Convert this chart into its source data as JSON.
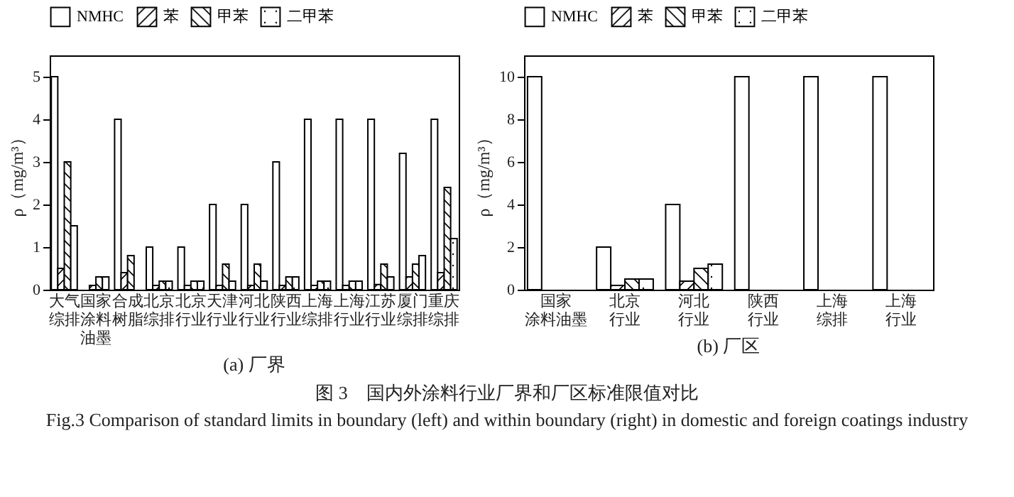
{
  "chart_data": [
    {
      "type": "bar",
      "title": "(a)  厂界",
      "ylabel": "ρ（mg/m³）",
      "categories": [
        "大气综排",
        "国家涂料油墨",
        "合成树脂",
        "北京综排",
        "北京行业",
        "天津行业",
        "河北行业",
        "陕西行业",
        "上海综排",
        "上海行业",
        "江苏行业",
        "厦门综排",
        "重庆综排"
      ],
      "series": [
        {
          "name": "NMHC",
          "color": "#000000",
          "values": [
            5,
            null,
            4,
            1,
            1,
            2,
            2,
            3,
            4,
            4,
            4,
            3.2,
            4
          ]
        },
        {
          "name": "苯",
          "color": "#000000",
          "values": [
            0.5,
            0.1,
            0.4,
            0.1,
            0.1,
            0.1,
            0.1,
            0.1,
            0.1,
            0.1,
            0.12,
            0.3,
            0.4
          ]
        },
        {
          "name": "甲苯",
          "color": "#000000",
          "values": [
            3,
            0.3,
            0.8,
            0.2,
            0.2,
            0.6,
            0.6,
            0.3,
            0.2,
            0.2,
            0.6,
            0.6,
            2.4
          ]
        },
        {
          "name": "二甲苯",
          "color": "#000000",
          "values": [
            1.5,
            0.3,
            null,
            0.2,
            0.2,
            0.2,
            0.2,
            0.3,
            0.2,
            0.2,
            0.3,
            0.8,
            1.2
          ]
        }
      ],
      "ylim": [
        0,
        5.5
      ],
      "yticks": [
        0,
        1,
        2,
        3,
        4,
        5
      ],
      "legend": "top",
      "annotations": [
        "图 3　国内外涂料行业厂界和厂区标准限值对比",
        "Fig.3 Comparison of standard limits in boundary (left) and within boundary (right) in domestic and foreign coatings industry"
      ]
    },
    {
      "type": "bar",
      "title": "(b)  厂区",
      "ylabel": "ρ（mg/m³）",
      "categories": [
        "国家涂料油墨",
        "北京行业",
        "河北行业",
        "陕西行业",
        "上海综排",
        "上海行业"
      ],
      "series": [
        {
          "name": "NMHC",
          "color": "#000000",
          "values": [
            10,
            2,
            4,
            10,
            10,
            10
          ]
        },
        {
          "name": "苯",
          "color": "#000000",
          "values": [
            null,
            0.2,
            0.4,
            null,
            null,
            null
          ]
        },
        {
          "name": "甲苯",
          "color": "#000000",
          "values": [
            null,
            0.5,
            1,
            null,
            null,
            null
          ]
        },
        {
          "name": "二甲苯",
          "color": "#000000",
          "values": [
            null,
            0.5,
            1.2,
            null,
            null,
            null
          ]
        }
      ],
      "ylim": [
        0,
        11
      ],
      "yticks": [
        0,
        2,
        4,
        6,
        8,
        10
      ],
      "legend": "top"
    }
  ]
}
